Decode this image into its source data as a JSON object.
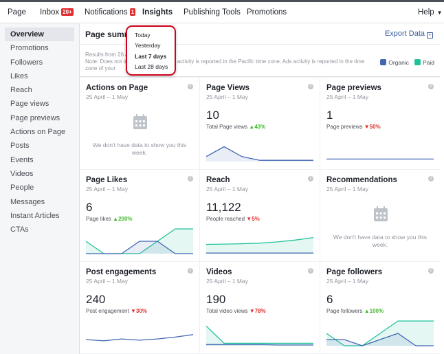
{
  "topnav": {
    "items": [
      {
        "label": "Page",
        "badge": ""
      },
      {
        "label": "Inbox",
        "badge": "20+"
      },
      {
        "label": "Notifications",
        "badge": "1"
      },
      {
        "label": "Insights",
        "badge": ""
      },
      {
        "label": "Publishing Tools",
        "badge": ""
      },
      {
        "label": "Promotions",
        "badge": ""
      }
    ],
    "active": "Insights",
    "help": "Help"
  },
  "sidebar": {
    "items": [
      {
        "label": "Overview"
      },
      {
        "label": "Promotions"
      },
      {
        "label": "Followers"
      },
      {
        "label": "Likes"
      },
      {
        "label": "Reach"
      },
      {
        "label": "Page views"
      },
      {
        "label": "Page previews"
      },
      {
        "label": "Actions on Page"
      },
      {
        "label": "Posts"
      },
      {
        "label": "Events"
      },
      {
        "label": "Videos"
      },
      {
        "label": "People"
      },
      {
        "label": "Messages"
      },
      {
        "label": "Instant Articles CTAs"
      }
    ],
    "active": "Overview"
  },
  "summary": {
    "title": "Page summa",
    "export_label": "Export Data",
    "results_text": "Results from 26 A                          8",
    "note_text": "Note: Does not in                      sights activity is reported in the Pacific time zone. Ads activity is reported in the time zone of your",
    "legend": [
      {
        "label": "Organic",
        "color": "#4267b2"
      },
      {
        "label": "Paid",
        "color": "#21c19a"
      }
    ]
  },
  "dropdown": {
    "options": [
      {
        "label": "Today",
        "selected": false
      },
      {
        "label": "Yesterday",
        "selected": false
      },
      {
        "label": "Last 7 days",
        "selected": true
      },
      {
        "label": "Last 28 days",
        "selected": false
      }
    ]
  },
  "cards": [
    {
      "title": "Actions on Page",
      "range": "25 April – 1 May",
      "nodata": "We don't have data to show you this week."
    },
    {
      "title": "Page Views",
      "range": "25 April – 1 May",
      "value": "10",
      "sub_label": "Total Page views",
      "change": "43%",
      "direction": "up"
    },
    {
      "title": "Page previews",
      "range": "25 April – 1 May",
      "value": "1",
      "sub_label": "Page previews",
      "change": "50%",
      "direction": "down"
    },
    {
      "title": "Page Likes",
      "range": "25 April – 1 May",
      "value": "6",
      "sub_label": "Page likes",
      "change": "200%",
      "direction": "up"
    },
    {
      "title": "Reach",
      "range": "25 April – 1 May",
      "value": "11,122",
      "sub_label": "People reached",
      "change": "5%",
      "direction": "down"
    },
    {
      "title": "Recommendations",
      "range": "25 April – 1 May",
      "nodata": "We don't have data to show you this week."
    },
    {
      "title": "Post engagements",
      "range": "25 April – 1 May",
      "value": "240",
      "sub_label": "Post engagement",
      "change": "30%",
      "direction": "down"
    },
    {
      "title": "Videos",
      "range": "25 April – 1 May",
      "value": "190",
      "sub_label": "Total video views",
      "change": "78%",
      "direction": "down"
    },
    {
      "title": "Page followers",
      "range": "25 April – 1 May",
      "value": "6",
      "sub_label": "Page followers",
      "change": "100%",
      "direction": "up"
    }
  ],
  "chart_data": [
    {
      "type": "area",
      "card": "Page Views",
      "ylim": [
        0,
        10
      ],
      "series": [
        {
          "name": "Organic",
          "values": [
            2,
            6,
            2,
            0.5,
            0.5,
            0.5,
            0.5
          ]
        }
      ]
    },
    {
      "type": "line",
      "card": "Page previews",
      "ylim": [
        0,
        10
      ],
      "series": [
        {
          "name": "Organic",
          "values": [
            1,
            1,
            1,
            1,
            1,
            1,
            1
          ]
        }
      ]
    },
    {
      "type": "area",
      "card": "Page Likes",
      "ylim": [
        0,
        4
      ],
      "series": [
        {
          "name": "Paid",
          "values": [
            2,
            0,
            0,
            0,
            2,
            4,
            4
          ]
        },
        {
          "name": "Organic",
          "values": [
            0,
            0,
            0,
            2,
            2,
            0,
            0
          ]
        }
      ]
    },
    {
      "type": "area",
      "card": "Reach",
      "ylim": [
        0,
        4000
      ],
      "series": [
        {
          "name": "Paid",
          "values": [
            1500,
            1550,
            1600,
            1700,
            1900,
            2200,
            2600
          ]
        },
        {
          "name": "Organic",
          "values": [
            100,
            100,
            100,
            100,
            100,
            100,
            100
          ]
        }
      ]
    },
    {
      "type": "line",
      "card": "Post engagements",
      "ylim": [
        0,
        80
      ],
      "series": [
        {
          "name": "Organic",
          "values": [
            20,
            16,
            22,
            18,
            22,
            28,
            36
          ]
        }
      ]
    },
    {
      "type": "area",
      "card": "Videos",
      "ylim": [
        0,
        100
      ],
      "series": [
        {
          "name": "Paid",
          "values": [
            80,
            10,
            10,
            10,
            10,
            10,
            10
          ]
        },
        {
          "name": "Organic",
          "values": [
            5,
            5,
            5,
            5,
            3,
            3,
            3
          ]
        }
      ]
    },
    {
      "type": "area",
      "card": "Page followers",
      "ylim": [
        0,
        4
      ],
      "series": [
        {
          "name": "Paid",
          "values": [
            2,
            0,
            0,
            2,
            4,
            4,
            4
          ]
        },
        {
          "name": "Organic",
          "values": [
            1,
            1,
            0,
            1,
            2,
            0,
            0
          ]
        }
      ]
    }
  ]
}
